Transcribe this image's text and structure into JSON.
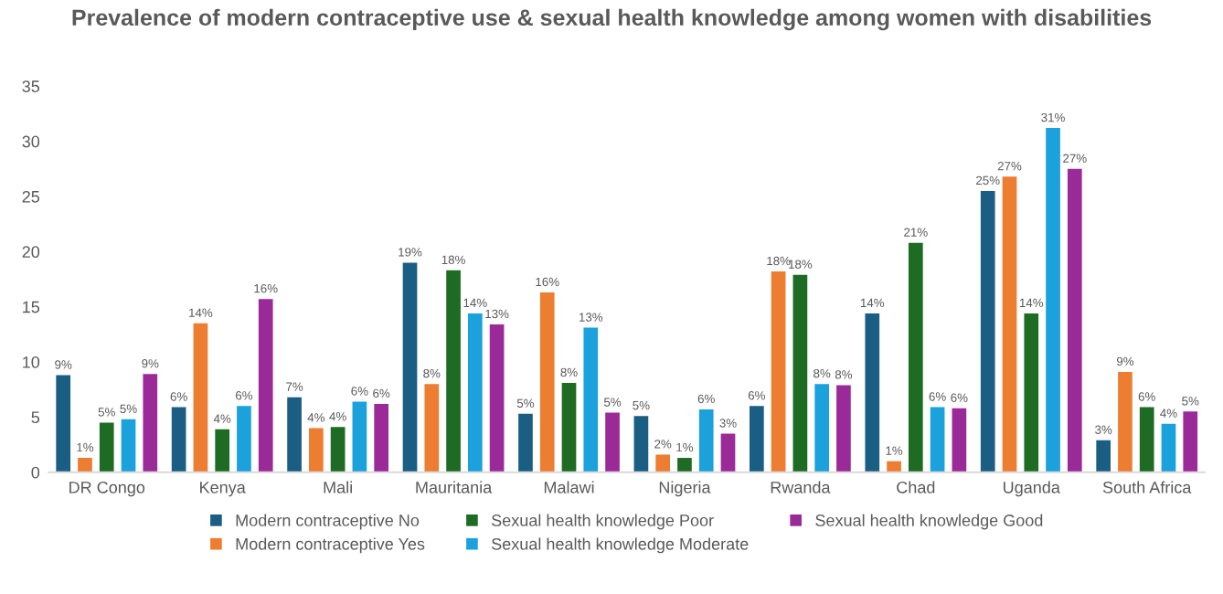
{
  "chart_data": {
    "type": "bar",
    "title": "Prevalence of modern contraceptive use & sexual health knowledge among women with disabilities",
    "categories": [
      "DR Congo",
      "Kenya",
      "Mali",
      "Mauritania",
      "Malawi",
      "Nigeria",
      "Rwanda",
      "Chad",
      "Uganda",
      "South Africa"
    ],
    "series": [
      {
        "name": "Modern contraceptive No",
        "color": "#1b5e83",
        "values": [
          8.8,
          5.9,
          6.8,
          19.0,
          5.3,
          5.1,
          6.0,
          14.4,
          25.5,
          2.9
        ],
        "value_labels": [
          "9%",
          "6%",
          "7%",
          "19%",
          "5%",
          "5%",
          "6%",
          "14%",
          "25%",
          "3%"
        ]
      },
      {
        "name": "Modern contraceptive Yes",
        "color": "#ed7d31",
        "values": [
          1.3,
          13.5,
          4.0,
          8.0,
          16.3,
          1.6,
          18.2,
          1.0,
          26.8,
          9.1
        ],
        "value_labels": [
          "1%",
          "14%",
          "4%",
          "8%",
          "16%",
          "2%",
          "18%",
          "1%",
          "27%",
          "9%"
        ]
      },
      {
        "name": "Sexual health knowledge Poor",
        "color": "#1e6b24",
        "values": [
          4.5,
          3.9,
          4.1,
          18.3,
          8.1,
          1.3,
          17.9,
          20.8,
          14.4,
          5.9
        ],
        "value_labels": [
          "5%",
          "4%",
          "4%",
          "18%",
          "8%",
          "1%",
          "18%",
          "21%",
          "14%",
          "6%"
        ]
      },
      {
        "name": "Sexual health knowledge Moderate",
        "color": "#1ba1dc",
        "values": [
          4.8,
          6.0,
          6.4,
          14.4,
          13.1,
          5.7,
          8.0,
          5.9,
          31.2,
          4.4
        ],
        "value_labels": [
          "5%",
          "6%",
          "6%",
          "14%",
          "13%",
          "6%",
          "8%",
          "6%",
          "31%",
          "4%"
        ]
      },
      {
        "name": "Sexual health knowledge Good",
        "color": "#9b2a99",
        "values": [
          8.9,
          15.7,
          6.2,
          13.4,
          5.4,
          3.5,
          7.9,
          5.8,
          27.5,
          5.5
        ],
        "value_labels": [
          "9%",
          "16%",
          "6%",
          "13%",
          "5%",
          "3%",
          "8%",
          "6%",
          "27%",
          "5%"
        ]
      }
    ],
    "ylim": [
      0,
      35
    ],
    "yticks": [
      0,
      5,
      10,
      15,
      20,
      25,
      30,
      35
    ],
    "grid": false,
    "legend": "bottom"
  }
}
